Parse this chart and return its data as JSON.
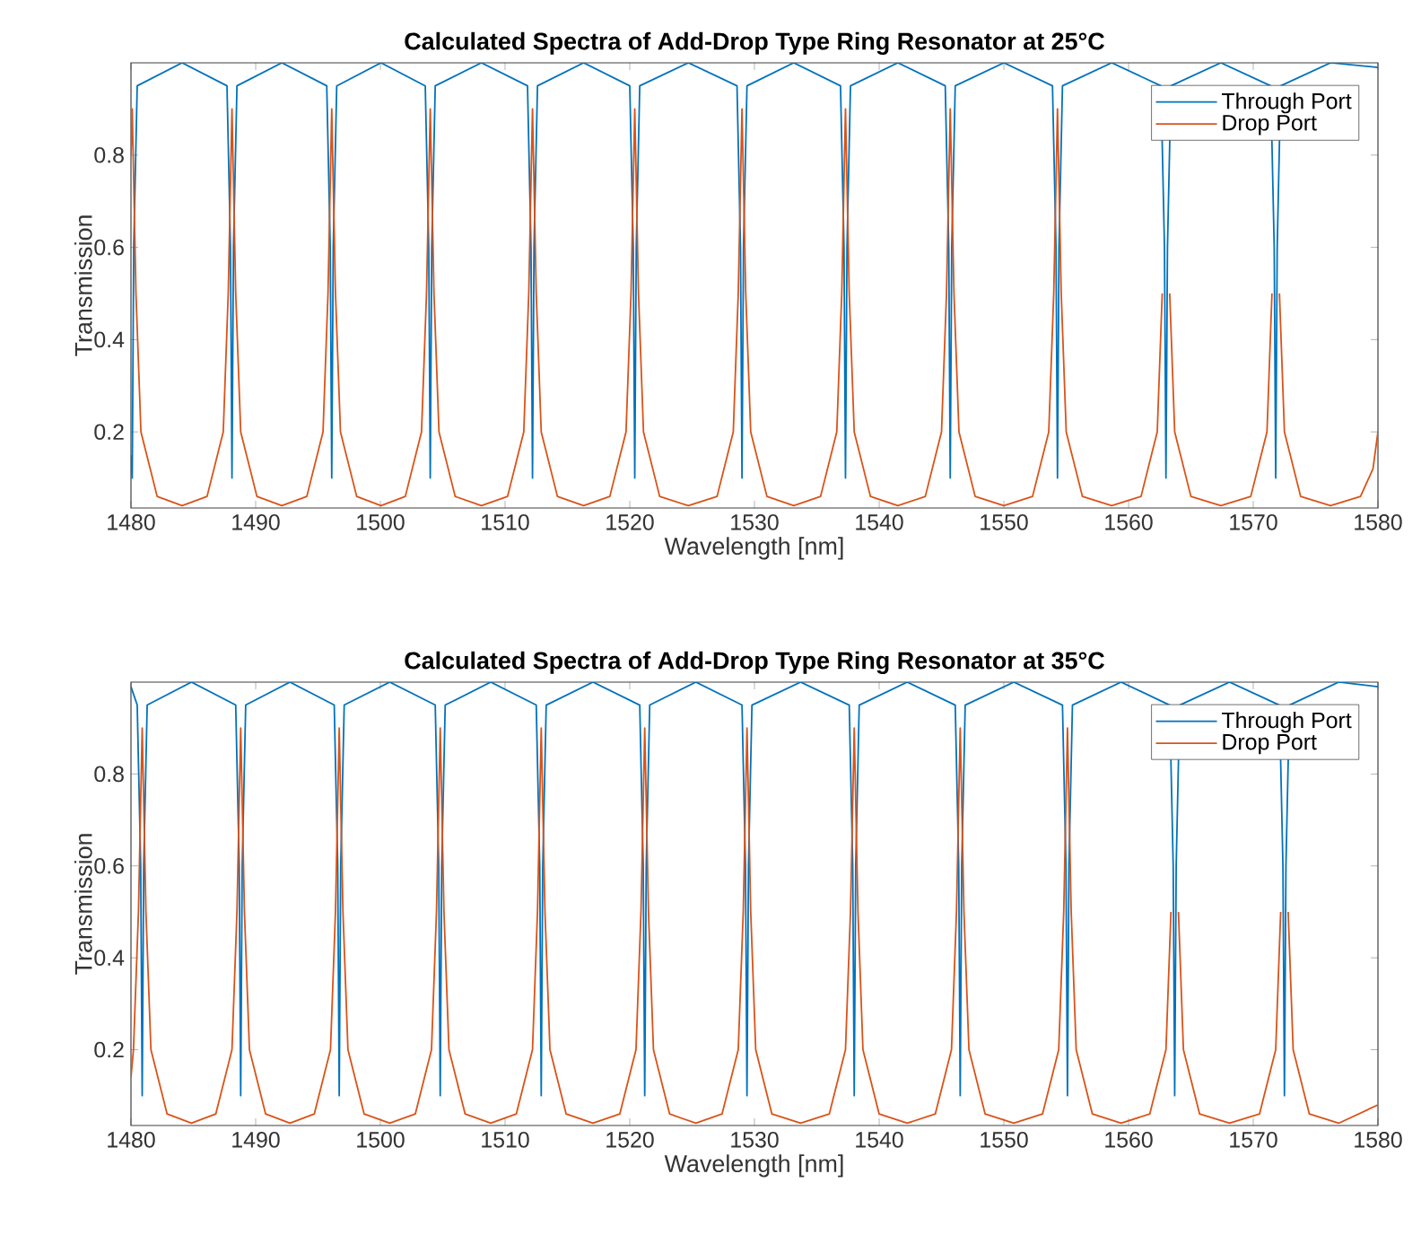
{
  "chart_data": [
    {
      "type": "line",
      "title": "Calculated Spectra of Add-Drop Type Ring Resonator at 25°C",
      "xlabel": "Wavelength [nm]",
      "ylabel": "Transmission",
      "xlim": [
        1480,
        1580
      ],
      "ylim": [
        0.035,
        1.0
      ],
      "xticks": [
        1480,
        1490,
        1500,
        1510,
        1520,
        1530,
        1540,
        1550,
        1560,
        1570,
        1580
      ],
      "yticks": [
        0.2,
        0.4,
        0.6,
        0.8
      ],
      "legend": "top right",
      "grid": false,
      "marker": "none",
      "line_style": "solid",
      "series": [
        {
          "name": "Through Port",
          "color": "#0072bd",
          "x": [
            1480,
            1480.1,
            1480.22,
            1480.5,
            1484.1,
            1487.7,
            1487.98,
            1488.1,
            1488.22,
            1488.5,
            1492.1,
            1495.7,
            1495.98,
            1496.1,
            1496.22,
            1496.5,
            1500.05,
            1503.6,
            1503.88,
            1504.0,
            1504.12,
            1504.4,
            1508.1,
            1511.8,
            1512.08,
            1512.2,
            1512.32,
            1512.6,
            1516.3,
            1520.0,
            1520.28,
            1520.4,
            1520.52,
            1520.8,
            1524.7,
            1528.6,
            1528.88,
            1529.0,
            1529.12,
            1529.4,
            1533.15,
            1536.9,
            1537.18,
            1537.3,
            1537.42,
            1537.7,
            1541.5,
            1545.3,
            1545.58,
            1545.7,
            1545.82,
            1546.1,
            1550.0,
            1553.9,
            1554.18,
            1554.3,
            1554.42,
            1554.7,
            1558.65,
            1562.6,
            1562.88,
            1563.0,
            1563.12,
            1563.4,
            1567.4,
            1571.4,
            1571.68,
            1571.8,
            1571.92,
            1572.2,
            1576.2,
            1580
          ],
          "values": [
            0.15,
            0.1,
            0.6,
            0.95,
            1.0,
            0.95,
            0.6,
            0.1,
            0.6,
            0.95,
            1.0,
            0.95,
            0.6,
            0.1,
            0.6,
            0.95,
            1.0,
            0.95,
            0.6,
            0.1,
            0.6,
            0.95,
            1.0,
            0.95,
            0.6,
            0.1,
            0.6,
            0.95,
            1.0,
            0.95,
            0.6,
            0.1,
            0.6,
            0.95,
            1.0,
            0.95,
            0.6,
            0.1,
            0.6,
            0.95,
            1.0,
            0.95,
            0.6,
            0.1,
            0.6,
            0.95,
            1.0,
            0.95,
            0.6,
            0.1,
            0.6,
            0.95,
            1.0,
            0.95,
            0.6,
            0.1,
            0.6,
            0.95,
            1.0,
            0.95,
            0.6,
            0.1,
            0.6,
            0.95,
            1.0,
            0.95,
            0.6,
            0.1,
            0.6,
            0.95,
            1.0,
            0.99
          ]
        },
        {
          "name": "Drop Port",
          "color": "#d95319",
          "x": [
            1480,
            1480.1,
            1480.4,
            1480.8,
            1482.1,
            1484.1,
            1486.1,
            1487.4,
            1487.8,
            1488.1,
            1488.4,
            1488.8,
            1490.1,
            1492.1,
            1494.1,
            1495.4,
            1495.8,
            1496.1,
            1496.4,
            1496.8,
            1498.1,
            1500.05,
            1502.0,
            1503.3,
            1503.7,
            1504.0,
            1504.3,
            1504.7,
            1506.0,
            1508.1,
            1510.2,
            1511.5,
            1511.9,
            1512.2,
            1512.5,
            1512.9,
            1514.2,
            1516.3,
            1518.4,
            1519.7,
            1520.1,
            1520.4,
            1520.7,
            1521.1,
            1522.4,
            1524.7,
            1527.0,
            1528.3,
            1528.7,
            1529.0,
            1529.3,
            1529.7,
            1531.0,
            1533.15,
            1535.3,
            1536.6,
            1537.0,
            1537.3,
            1537.6,
            1538.0,
            1539.3,
            1541.5,
            1543.7,
            1545.0,
            1545.4,
            1545.7,
            1546.0,
            1546.4,
            1547.7,
            1550.0,
            1552.3,
            1553.6,
            1554.0,
            1554.3,
            1554.6,
            1555.0,
            1556.3,
            1558.65,
            1561.0,
            1562.3,
            1562.7,
            1563.0,
            1563.3,
            1563.7,
            1565.0,
            1567.4,
            1569.8,
            1571.1,
            1571.5,
            1571.8,
            1572.1,
            1572.5,
            1573.8,
            1576.2,
            1578.6,
            1579.6,
            1580
          ],
          "values": [
            0.8,
            0.9,
            0.5,
            0.2,
            0.06,
            0.04,
            0.06,
            0.2,
            0.5,
            0.9,
            0.5,
            0.2,
            0.06,
            0.04,
            0.06,
            0.2,
            0.5,
            0.9,
            0.5,
            0.2,
            0.06,
            0.04,
            0.06,
            0.2,
            0.5,
            0.9,
            0.5,
            0.2,
            0.06,
            0.04,
            0.06,
            0.2,
            0.5,
            0.9,
            0.5,
            0.2,
            0.06,
            0.04,
            0.06,
            0.2,
            0.5,
            0.9,
            0.5,
            0.2,
            0.06,
            0.04,
            0.06,
            0.2,
            0.5,
            0.9,
            0.5,
            0.2,
            0.06,
            0.04,
            0.06,
            0.2,
            0.5,
            0.9,
            0.5,
            0.2,
            0.06,
            0.04,
            0.06,
            0.2,
            0.5,
            0.9,
            0.5,
            0.2,
            0.06,
            0.04,
            0.06,
            0.2,
            0.5,
            0.9,
            0.5,
            0.2,
            0.06,
            0.04,
            0.06,
            0.2,
            0.5,
            null,
            0.5,
            0.2,
            0.06,
            0.04,
            0.06,
            0.2,
            0.5,
            null,
            0.5,
            0.2,
            0.06,
            0.04,
            0.06,
            0.12,
            0.2
          ]
        }
      ]
    },
    {
      "type": "line",
      "title": "Calculated Spectra of Add-Drop Type Ring Resonator at 35°C",
      "xlabel": "Wavelength [nm]",
      "ylabel": "Transmission",
      "xlim": [
        1480,
        1580
      ],
      "ylim": [
        0.035,
        1.0
      ],
      "xticks": [
        1480,
        1490,
        1500,
        1510,
        1520,
        1530,
        1540,
        1550,
        1560,
        1570,
        1580
      ],
      "yticks": [
        0.2,
        0.4,
        0.6,
        0.8
      ],
      "legend": "top right",
      "grid": false,
      "marker": "none",
      "line_style": "solid",
      "series": [
        {
          "name": "Through Port",
          "color": "#0072bd",
          "x": [
            1480,
            1480.5,
            1480.78,
            1480.9,
            1481.02,
            1481.3,
            1484.85,
            1488.4,
            1488.68,
            1488.8,
            1488.92,
            1489.2,
            1492.75,
            1496.3,
            1496.58,
            1496.7,
            1496.82,
            1497.1,
            1500.75,
            1504.4,
            1504.68,
            1504.8,
            1504.92,
            1505.2,
            1508.85,
            1512.5,
            1512.78,
            1512.9,
            1513.02,
            1513.3,
            1517.05,
            1520.8,
            1521.08,
            1521.2,
            1521.32,
            1521.6,
            1525.3,
            1529.0,
            1529.28,
            1529.4,
            1529.52,
            1529.8,
            1533.7,
            1537.6,
            1537.88,
            1538.0,
            1538.12,
            1538.4,
            1542.25,
            1546.1,
            1546.38,
            1546.5,
            1546.62,
            1546.9,
            1550.8,
            1554.7,
            1554.98,
            1555.1,
            1555.22,
            1555.5,
            1559.4,
            1563.3,
            1563.58,
            1563.7,
            1563.82,
            1564.1,
            1568.1,
            1572.1,
            1572.38,
            1572.5,
            1572.62,
            1572.9,
            1576.85,
            1580
          ],
          "values": [
            0.99,
            0.95,
            0.6,
            0.1,
            0.6,
            0.95,
            1.0,
            0.95,
            0.6,
            0.1,
            0.6,
            0.95,
            1.0,
            0.95,
            0.6,
            0.1,
            0.6,
            0.95,
            1.0,
            0.95,
            0.6,
            0.1,
            0.6,
            0.95,
            1.0,
            0.95,
            0.6,
            0.1,
            0.6,
            0.95,
            1.0,
            0.95,
            0.6,
            0.1,
            0.6,
            0.95,
            1.0,
            0.95,
            0.6,
            0.1,
            0.6,
            0.95,
            1.0,
            0.95,
            0.6,
            0.1,
            0.6,
            0.95,
            1.0,
            0.95,
            0.6,
            0.1,
            0.6,
            0.95,
            1.0,
            0.95,
            0.6,
            0.1,
            0.6,
            0.95,
            1.0,
            0.95,
            0.6,
            0.1,
            0.6,
            0.95,
            1.0,
            0.95,
            0.6,
            0.1,
            0.6,
            0.95,
            1.0,
            0.99
          ]
        },
        {
          "name": "Drop Port",
          "color": "#d95319",
          "x": [
            1480,
            1480.2,
            1480.6,
            1480.9,
            1481.2,
            1481.6,
            1482.9,
            1484.85,
            1486.8,
            1488.1,
            1488.5,
            1488.8,
            1489.1,
            1489.5,
            1490.8,
            1492.75,
            1494.7,
            1496.0,
            1496.4,
            1496.7,
            1497.0,
            1497.4,
            1498.7,
            1500.75,
            1502.8,
            1504.1,
            1504.5,
            1504.8,
            1505.1,
            1505.5,
            1506.8,
            1508.85,
            1510.9,
            1512.2,
            1512.6,
            1512.9,
            1513.2,
            1513.6,
            1514.9,
            1517.05,
            1519.2,
            1520.5,
            1520.9,
            1521.2,
            1521.5,
            1521.9,
            1523.2,
            1525.3,
            1527.4,
            1528.7,
            1529.1,
            1529.4,
            1529.7,
            1530.1,
            1531.4,
            1533.7,
            1536.0,
            1537.3,
            1537.7,
            1538.0,
            1538.3,
            1538.7,
            1540.0,
            1542.25,
            1544.5,
            1545.8,
            1546.2,
            1546.5,
            1546.8,
            1547.2,
            1548.5,
            1550.8,
            1553.1,
            1554.4,
            1554.8,
            1555.1,
            1555.4,
            1555.8,
            1557.1,
            1559.4,
            1561.7,
            1563.0,
            1563.4,
            1563.7,
            1564.0,
            1564.4,
            1565.7,
            1568.1,
            1570.5,
            1571.8,
            1572.2,
            1572.5,
            1572.8,
            1573.2,
            1574.5,
            1576.85,
            1580
          ],
          "values": [
            0.14,
            0.2,
            0.5,
            0.9,
            0.5,
            0.2,
            0.06,
            0.04,
            0.06,
            0.2,
            0.5,
            0.9,
            0.5,
            0.2,
            0.06,
            0.04,
            0.06,
            0.2,
            0.5,
            0.9,
            0.5,
            0.2,
            0.06,
            0.04,
            0.06,
            0.2,
            0.5,
            0.9,
            0.5,
            0.2,
            0.06,
            0.04,
            0.06,
            0.2,
            0.5,
            0.9,
            0.5,
            0.2,
            0.06,
            0.04,
            0.06,
            0.2,
            0.5,
            0.9,
            0.5,
            0.2,
            0.06,
            0.04,
            0.06,
            0.2,
            0.5,
            0.9,
            0.5,
            0.2,
            0.06,
            0.04,
            0.06,
            0.2,
            0.5,
            0.9,
            0.5,
            0.2,
            0.06,
            0.04,
            0.06,
            0.2,
            0.5,
            0.9,
            0.5,
            0.2,
            0.06,
            0.04,
            0.06,
            0.2,
            0.5,
            0.9,
            0.5,
            0.2,
            0.06,
            0.04,
            0.06,
            0.2,
            0.5,
            null,
            0.5,
            0.2,
            0.06,
            0.04,
            0.06,
            0.2,
            0.5,
            null,
            0.5,
            0.2,
            0.06,
            0.04,
            0.08
          ]
        }
      ]
    }
  ]
}
